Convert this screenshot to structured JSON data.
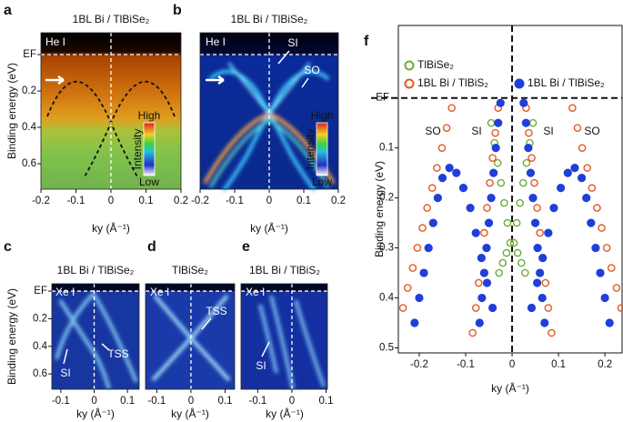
{
  "chart_data": [
    {
      "type": "image",
      "panel": "a",
      "title": "1BL Bi / TlBiSe₂",
      "x_label": "ky (Å⁻¹)",
      "y_label": "Binding energy (eV)",
      "xlim": [
        -0.2,
        0.2
      ],
      "xticks": [
        -0.2,
        -0.1,
        0,
        0.1,
        0.2
      ],
      "ylim": [
        0.74,
        -0.12
      ],
      "yticks": [
        {
          "value": 0,
          "label": "EF"
        },
        0.2,
        0.4,
        0.6
      ],
      "annotations": [
        "He I",
        "High",
        "Intensity",
        "Low"
      ]
    },
    {
      "type": "image",
      "panel": "b",
      "title": "1BL Bi / TlBiSe₂",
      "x_label": "ky (Å⁻¹)",
      "xlim": [
        -0.2,
        0.2
      ],
      "xticks": [
        -0.2,
        -0.1,
        0,
        0.1,
        0.2
      ],
      "ylim": [
        0.74,
        -0.12
      ],
      "annotations": [
        "He I",
        "SI",
        "SO",
        "High",
        "Intensity",
        "Low"
      ]
    },
    {
      "type": "image",
      "panel": "c",
      "title": "1BL Bi / TlBiSe₂",
      "x_label": "ky (Å⁻¹)",
      "y_label": "Binding energy (eV)",
      "xlim": [
        -0.127,
        0.135
      ],
      "xticks": [
        -0.1,
        0,
        0.1
      ],
      "ylim": [
        0.711,
        -0.053
      ],
      "yticks": [
        {
          "value": 0,
          "label": "EF"
        },
        0.2,
        0.4,
        0.6
      ],
      "annotations": [
        "Xe I",
        "SI",
        "TSS"
      ]
    },
    {
      "type": "image",
      "panel": "d",
      "title": "TlBiSe₂",
      "x_label": "ky (Å⁻¹)",
      "xlim": [
        -0.133,
        0.128
      ],
      "xticks": [
        -0.1,
        0,
        0.1
      ],
      "ylim": [
        0.711,
        -0.053
      ],
      "annotations": [
        "Xe I",
        "TSS"
      ]
    },
    {
      "type": "image",
      "panel": "e",
      "title": "1BL Bi / TlBiS₂",
      "x_label": "ky (Å⁻¹)",
      "xlim": [
        -0.149,
        0.104
      ],
      "xticks": [
        -0.1,
        0,
        0.1
      ],
      "ylim": [
        0.711,
        -0.053
      ],
      "annotations": [
        "Xe I",
        "SI"
      ]
    },
    {
      "type": "scatter",
      "panel": "f",
      "x_label": "ky (Å⁻¹)",
      "y_label": "Binding energy (eV)",
      "xlim": [
        -0.245,
        0.237
      ],
      "xticks": [
        -0.2,
        -0.1,
        0,
        0.1,
        0.2
      ],
      "ylim": [
        0.51,
        -0.145
      ],
      "yticks": [
        {
          "value": 0,
          "label": "EF"
        },
        0.1,
        0.2,
        0.3,
        0.4,
        0.5
      ],
      "annotations": [
        "SO",
        "SI",
        "SI",
        "SO"
      ],
      "series": [
        {
          "name": "TlBiSe₂",
          "color": "#6fae3a",
          "marker": "open",
          "x": [
            -0.045,
            -0.038,
            -0.031,
            -0.024,
            -0.017,
            -0.01,
            -0.004,
            -0.012,
            -0.02,
            -0.028,
            0.045,
            0.038,
            0.031,
            0.024,
            0.017,
            0.01,
            0.004,
            0.012,
            0.02,
            0.028
          ],
          "values": [
            0.05,
            0.09,
            0.13,
            0.17,
            0.21,
            0.25,
            0.29,
            0.31,
            0.33,
            0.35,
            0.05,
            0.09,
            0.13,
            0.17,
            0.21,
            0.25,
            0.29,
            0.31,
            0.33,
            0.35
          ]
        },
        {
          "name": "1BL Bi / TlBiS₂",
          "color": "#e35a24",
          "marker": "open",
          "x": [
            -0.13,
            -0.141,
            -0.151,
            -0.162,
            -0.172,
            -0.183,
            -0.193,
            -0.204,
            -0.214,
            -0.225,
            -0.235,
            -0.03,
            -0.036,
            -0.042,
            -0.048,
            -0.054,
            -0.06,
            -0.066,
            -0.072,
            -0.078,
            -0.085,
            0.03,
            0.036,
            0.042,
            0.048,
            0.054,
            0.06,
            0.066,
            0.072,
            0.078,
            0.085,
            0.13,
            0.141,
            0.151,
            0.162,
            0.172,
            0.183,
            0.193,
            0.204,
            0.214,
            0.225,
            0.235
          ],
          "values": [
            0.02,
            0.06,
            0.1,
            0.14,
            0.18,
            0.22,
            0.26,
            0.3,
            0.34,
            0.38,
            0.42,
            0.02,
            0.07,
            0.12,
            0.17,
            0.22,
            0.27,
            0.32,
            0.37,
            0.42,
            0.47,
            0.02,
            0.07,
            0.12,
            0.17,
            0.22,
            0.27,
            0.32,
            0.37,
            0.42,
            0.47,
            0.02,
            0.06,
            0.1,
            0.14,
            0.18,
            0.22,
            0.26,
            0.3,
            0.34,
            0.38,
            0.42
          ]
        },
        {
          "name": "1BL Bi / TlBiSe₂",
          "color": "#1f3fd8",
          "marker": "filled",
          "x": [
            -0.21,
            -0.2,
            -0.19,
            -0.18,
            -0.17,
            -0.16,
            -0.15,
            -0.135,
            -0.12,
            -0.105,
            -0.09,
            -0.078,
            -0.066,
            -0.054,
            -0.042,
            0.21,
            0.2,
            0.19,
            0.18,
            0.17,
            0.16,
            0.15,
            0.135,
            0.12,
            0.105,
            0.09,
            0.078,
            0.066,
            0.054,
            0.042,
            -0.07,
            -0.065,
            -0.06,
            -0.055,
            -0.05,
            -0.045,
            -0.04,
            -0.035,
            -0.03,
            -0.025,
            0.07,
            0.065,
            0.06,
            0.055,
            0.05,
            0.045,
            0.04,
            0.035,
            0.03,
            0.025
          ],
          "values": [
            0.45,
            0.4,
            0.35,
            0.3,
            0.25,
            0.2,
            0.16,
            0.14,
            0.15,
            0.18,
            0.22,
            0.27,
            0.32,
            0.37,
            0.42,
            0.45,
            0.4,
            0.35,
            0.3,
            0.25,
            0.2,
            0.16,
            0.14,
            0.15,
            0.18,
            0.22,
            0.27,
            0.32,
            0.37,
            0.42,
            0.45,
            0.4,
            0.35,
            0.3,
            0.25,
            0.2,
            0.15,
            0.1,
            0.05,
            0.01,
            0.45,
            0.4,
            0.35,
            0.3,
            0.25,
            0.2,
            0.15,
            0.1,
            0.05,
            0.01
          ]
        }
      ]
    }
  ]
}
